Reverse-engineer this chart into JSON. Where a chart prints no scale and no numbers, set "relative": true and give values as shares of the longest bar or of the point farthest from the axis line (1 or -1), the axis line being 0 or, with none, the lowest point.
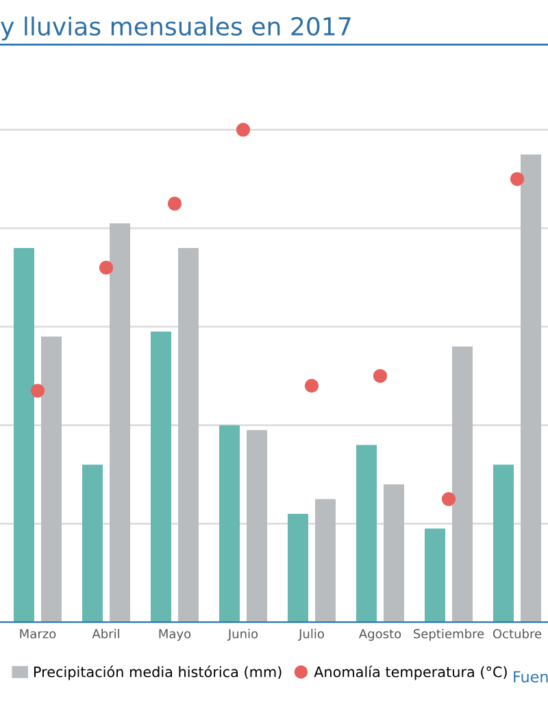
{
  "chart_data": {
    "type": "bar",
    "title": "y lluvias mensuales en 2017",
    "relative": true,
    "grid": "y",
    "legend": "bottom",
    "categories": [
      "Marzo",
      "Abril",
      "Mayo",
      "Junio",
      "Julio",
      "Agosto",
      "Septiembre",
      "Octubre"
    ],
    "series": [
      {
        "color": "#66b8b0",
        "values": [
          0.76,
          0.32,
          0.59,
          0.4,
          0.22,
          0.36,
          0.19,
          0.32
        ]
      },
      {
        "name": "Precipitación media histórica (mm)",
        "color": "#b9bcbf",
        "values": [
          0.58,
          0.81,
          0.76,
          0.39,
          0.25,
          0.28,
          0.56,
          0.95
        ]
      },
      {
        "name": "Anomalía temperatura (°C)",
        "type": "scatter",
        "marker": "circle",
        "color": "#e8605d",
        "values": [
          0.47,
          0.72,
          0.85,
          1.0,
          0.48,
          0.5,
          0.25,
          0.9
        ]
      }
    ],
    "annotations": [
      "Fuen"
    ]
  }
}
